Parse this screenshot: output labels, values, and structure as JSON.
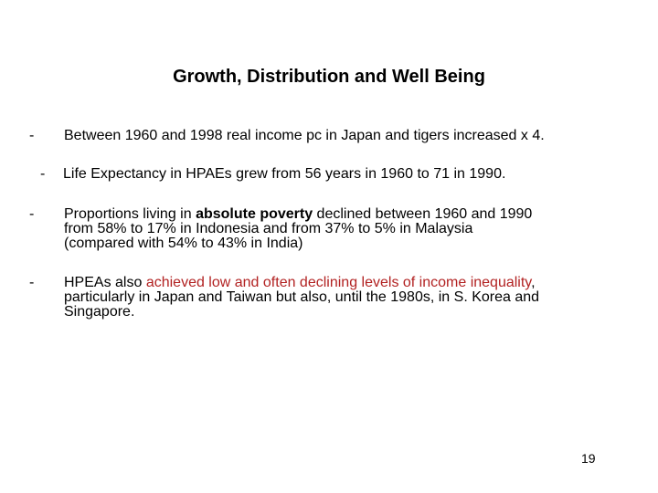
{
  "slide": {
    "title": "Growth, Distribution and Well Being",
    "bullet_marker": "-",
    "bullets": [
      {
        "text": "Between 1960 and 1998 real income pc in Japan and tigers increased x 4."
      },
      {
        "text": "Life Expectancy in HPAEs grew from 56 years in 1960 to 71 in 1990."
      },
      {
        "line1_pre": "Proportions living in ",
        "line1_emph": "absolute poverty",
        "line1_post": " declined between 1960 and 1990",
        "line2": "from 58% to 17% in Indonesia and from 37% to 5% in Malaysia",
        "line3": "(compared with 54% to 43% in India)"
      },
      {
        "line1_pre": "HPEAs also ",
        "line1_highlight": "achieved low and often declining levels of income inequality",
        "line1_post": ",",
        "line2": "particularly in Japan and Taiwan but also, until the 1980s, in S. Korea and",
        "line3": "Singapore."
      }
    ],
    "page_number": "19",
    "highlight_color": "#b22222"
  }
}
